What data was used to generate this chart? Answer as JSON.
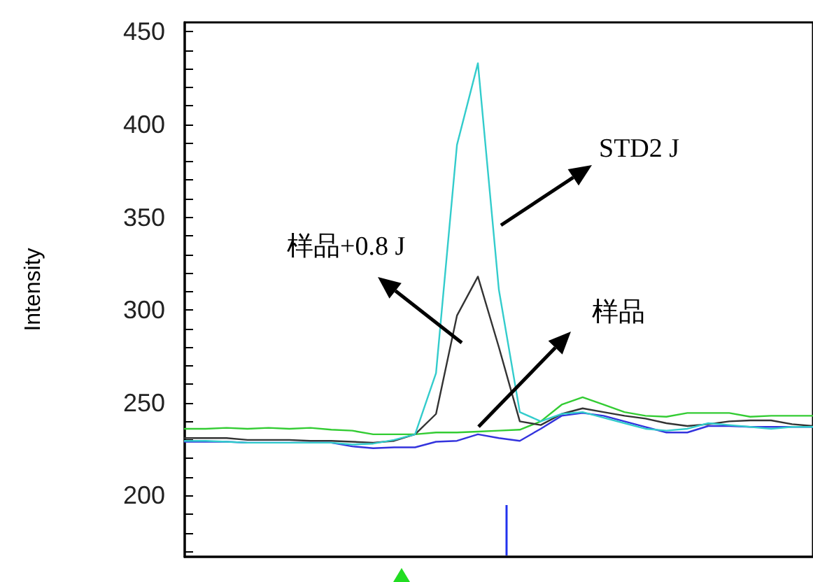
{
  "chart_data": {
    "type": "line",
    "ylabel": "Intensity",
    "categories": [
      null,
      null,
      null,
      null,
      null,
      null,
      null,
      null,
      null,
      null,
      null,
      null,
      null,
      null,
      null,
      null,
      null,
      null,
      null,
      null,
      null,
      null,
      null,
      null,
      null,
      null,
      null,
      null,
      null,
      null,
      null
    ],
    "series": [
      {
        "color": "#33cc33",
        "values": [
          236,
          236,
          236.5,
          236,
          236.5,
          236,
          236.5,
          235.5,
          235,
          233,
          233,
          233,
          234,
          234,
          234.5,
          235,
          235.5,
          240,
          249,
          253,
          249,
          245,
          243,
          242.5,
          244.5,
          244.5,
          244.5,
          242.5,
          243,
          243,
          243
        ]
      },
      {
        "color": "#333333",
        "values": [
          231,
          231,
          231,
          230,
          230,
          230,
          229.5,
          229.5,
          229,
          228.5,
          229.5,
          233,
          244,
          297,
          318,
          280,
          240,
          238,
          244,
          247,
          245,
          243,
          241.5,
          239,
          237.5,
          238.5,
          240,
          240.5,
          240.5,
          238.5,
          237.5
        ]
      },
      {
        "color": "#3333dd",
        "values": [
          229,
          229,
          229,
          228.5,
          228.5,
          228.5,
          228.5,
          228.5,
          226.5,
          225.5,
          226,
          226,
          229,
          229.5,
          233,
          231,
          229.5,
          236,
          243,
          244.5,
          243,
          240,
          237,
          234,
          234,
          237.5,
          237.5,
          237,
          237,
          237,
          237
        ]
      },
      {
        "color": "#33cccc",
        "values": [
          229.5,
          229.5,
          229,
          228.5,
          228.5,
          228.5,
          228.5,
          228.5,
          227.5,
          228,
          230,
          233,
          266,
          389,
          433,
          311,
          245,
          240,
          244,
          245,
          242,
          239,
          236,
          235,
          236,
          239,
          238,
          237,
          236,
          237,
          237
        ]
      }
    ],
    "ylim": [
      167,
      455
    ],
    "yticks": [
      {
        "value": 170,
        "label": null
      },
      {
        "value": 180,
        "label": null
      },
      {
        "value": 190,
        "label": null
      },
      200,
      {
        "value": 210,
        "label": null
      },
      {
        "value": 220,
        "label": null
      },
      {
        "value": 230,
        "label": null
      },
      {
        "value": 240,
        "label": null
      },
      250,
      {
        "value": 260,
        "label": null
      },
      {
        "value": 270,
        "label": null
      },
      {
        "value": 280,
        "label": null
      },
      {
        "value": 290,
        "label": null
      },
      300,
      {
        "value": 310,
        "label": null
      },
      {
        "value": 320,
        "label": null
      },
      {
        "value": 330,
        "label": null
      },
      {
        "value": 340,
        "label": null
      },
      350,
      {
        "value": 360,
        "label": null
      },
      {
        "value": 370,
        "label": null
      },
      {
        "value": 380,
        "label": null
      },
      {
        "value": 390,
        "label": null
      },
      400,
      {
        "value": 410,
        "label": null
      },
      {
        "value": 420,
        "label": null
      },
      {
        "value": 430,
        "label": null
      },
      {
        "value": 440,
        "label": null
      },
      450
    ],
    "annotations": [
      "STD2 J",
      "样品+0.8 J",
      "样品"
    ],
    "tick_labels": "y",
    "grid": false,
    "marker": "none",
    "line_style": "solid"
  }
}
